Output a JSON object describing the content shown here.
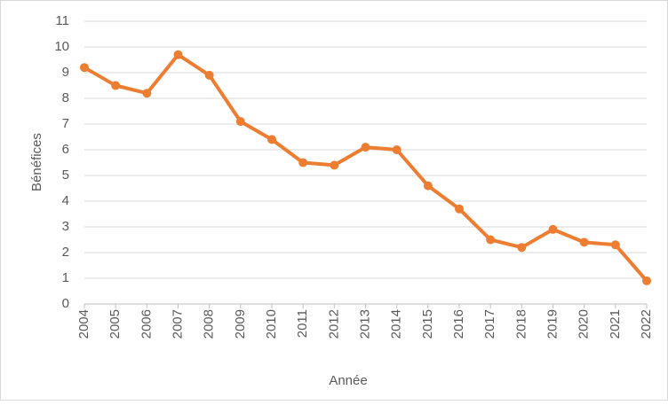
{
  "chart_data": {
    "type": "line",
    "x_label": "Année",
    "y_label": "Bénéfices",
    "categories": [
      "2004",
      "2005",
      "2006",
      "2007",
      "2008",
      "2009",
      "2010",
      "2011",
      "2012",
      "2013",
      "2014",
      "2015",
      "2016",
      "2017",
      "2018",
      "2019",
      "2020",
      "2021",
      "2022"
    ],
    "series": [
      {
        "color": "#ed7d31",
        "values": [
          9.2,
          8.5,
          8.2,
          9.7,
          8.9,
          7.1,
          6.4,
          5.5,
          5.4,
          6.1,
          6.0,
          4.6,
          3.7,
          2.5,
          2.2,
          2.9,
          2.4,
          2.3,
          0.9
        ]
      }
    ],
    "ylim": [
      0,
      11
    ],
    "yticks": [
      0,
      1,
      2,
      3,
      4,
      5,
      6,
      7,
      8,
      9,
      10,
      11
    ],
    "grid": true
  }
}
